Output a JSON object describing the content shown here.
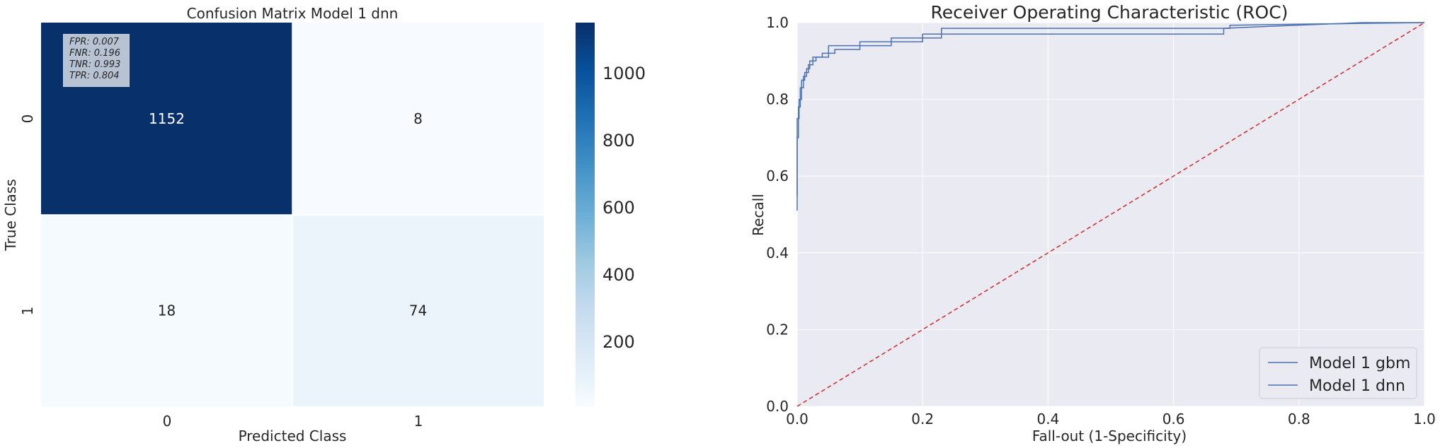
{
  "chart_data": [
    {
      "type": "heatmap",
      "title": "Confusion Matrix Model 1 dnn",
      "xlabel": "Predicted Class",
      "ylabel": "True Class",
      "x_categories": [
        "0",
        "1"
      ],
      "y_categories": [
        "0",
        "1"
      ],
      "values": [
        [
          1152,
          8
        ],
        [
          18,
          74
        ]
      ],
      "colormap": "Blues",
      "colorbar": {
        "ticks": [
          200,
          400,
          600,
          800,
          1000
        ],
        "range": [
          8,
          1152
        ]
      },
      "annotation": [
        "FPR: 0.007",
        "FNR: 0.196",
        "TNR: 0.993",
        "TPR: 0.804"
      ]
    },
    {
      "type": "line",
      "title": "Receiver Operating Characteristic (ROC)",
      "xlabel": "Fall-out (1-Specificity)",
      "ylabel": "Recall",
      "xlim": [
        0.0,
        1.0
      ],
      "ylim": [
        0.0,
        1.0
      ],
      "xticks": [
        "0.0",
        "0.2",
        "0.4",
        "0.6",
        "0.8",
        "1.0"
      ],
      "yticks": [
        "0.0",
        "0.2",
        "0.4",
        "0.6",
        "0.8",
        "1.0"
      ],
      "grid": true,
      "legend_position": "lower-right",
      "series": [
        {
          "name": "Model 1 gbm",
          "color": "#4c72b0",
          "x": [
            0.0,
            0.0,
            0.002,
            0.002,
            0.005,
            0.005,
            0.01,
            0.01,
            0.015,
            0.015,
            0.02,
            0.02,
            0.03,
            0.03,
            0.04,
            0.04,
            0.06,
            0.06,
            0.1,
            0.1,
            0.2,
            0.2,
            0.68,
            0.68,
            0.75,
            0.9,
            1.0
          ],
          "y": [
            0.51,
            0.7,
            0.7,
            0.78,
            0.78,
            0.83,
            0.83,
            0.86,
            0.86,
            0.88,
            0.88,
            0.9,
            0.9,
            0.91,
            0.91,
            0.92,
            0.92,
            0.93,
            0.93,
            0.95,
            0.95,
            0.97,
            0.97,
            0.985,
            0.99,
            1.0,
            1.0
          ]
        },
        {
          "name": "Model 1 dnn",
          "color": "#4c72b0",
          "x": [
            0.0,
            0.0,
            0.003,
            0.003,
            0.007,
            0.007,
            0.012,
            0.012,
            0.018,
            0.018,
            0.025,
            0.025,
            0.05,
            0.05,
            0.15,
            0.15,
            0.23,
            0.23,
            0.69,
            0.69,
            0.8,
            1.0
          ],
          "y": [
            0.55,
            0.75,
            0.75,
            0.8,
            0.8,
            0.85,
            0.85,
            0.87,
            0.87,
            0.89,
            0.89,
            0.91,
            0.91,
            0.94,
            0.94,
            0.96,
            0.96,
            0.985,
            0.985,
            0.993,
            0.996,
            1.0
          ]
        },
        {
          "name": "",
          "color": "#d62728",
          "style": "dashed",
          "x": [
            0.0,
            1.0
          ],
          "y": [
            0.0,
            1.0
          ]
        }
      ]
    }
  ]
}
